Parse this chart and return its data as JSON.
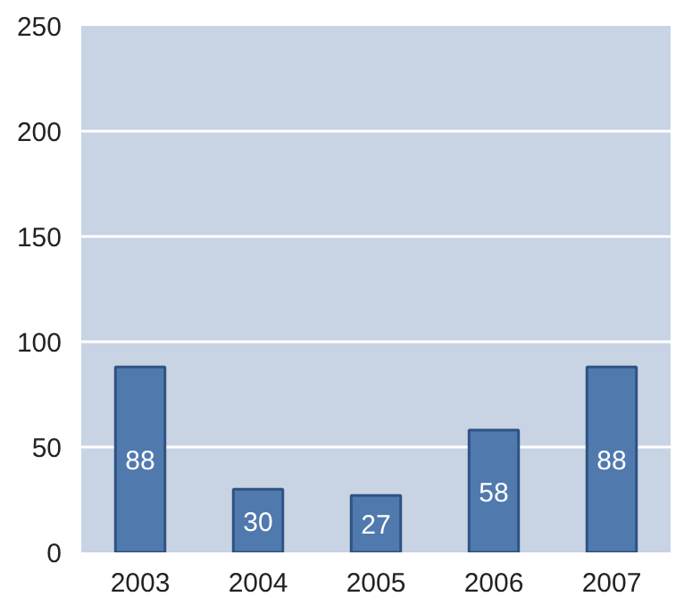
{
  "chart_data": {
    "type": "bar",
    "categories": [
      "2003",
      "2004",
      "2005",
      "2006",
      "2007"
    ],
    "values": [
      88,
      30,
      27,
      58,
      88
    ],
    "color": "#5079ae",
    "ylim": [
      0,
      250
    ],
    "yticks": [
      0,
      50,
      100,
      150,
      200,
      250
    ],
    "grid": "y",
    "data_labels": true
  }
}
